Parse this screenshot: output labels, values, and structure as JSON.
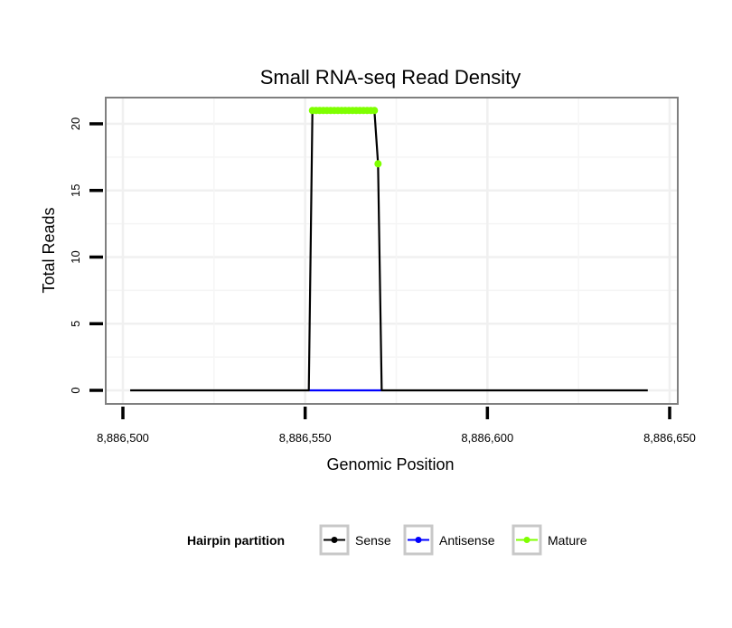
{
  "chart_data": {
    "type": "line",
    "title": "Small RNA-seq Read Density",
    "xlabel": "Genomic Position",
    "ylabel": "Total Reads",
    "xlim": [
      8886500,
      8886650
    ],
    "ylim": [
      -1,
      22
    ],
    "x_ticks": [
      8886500,
      8886550,
      8886600,
      8886650
    ],
    "x_tick_labels": [
      "8,886,500",
      "8,886,550",
      "8,886,600",
      "8,886,650"
    ],
    "y_ticks": [
      0,
      5,
      10,
      15,
      20
    ],
    "y_tick_labels": [
      "0",
      "5",
      "10",
      "15",
      "20"
    ],
    "grid": true,
    "legend": {
      "title": "Hairpin partition",
      "placement": "bottom",
      "entries": [
        "Sense",
        "Antisense",
        "Mature"
      ]
    },
    "series": [
      {
        "name": "Sense",
        "color": "#000000",
        "points": false,
        "x": [
          8886502,
          8886551,
          8886552,
          8886569,
          8886570,
          8886571,
          8886644
        ],
        "y": [
          0,
          0,
          21,
          21,
          17,
          0,
          0
        ]
      },
      {
        "name": "Antisense",
        "color": "#0000ff",
        "points": false,
        "x": [
          8886551,
          8886571
        ],
        "y": [
          0,
          0
        ]
      },
      {
        "name": "Mature",
        "color": "#7fff00",
        "points": true,
        "x": [
          8886552,
          8886553,
          8886554,
          8886555,
          8886556,
          8886557,
          8886558,
          8886559,
          8886560,
          8886561,
          8886562,
          8886563,
          8886564,
          8886565,
          8886566,
          8886567,
          8886568,
          8886569,
          8886570
        ],
        "y": [
          21,
          21,
          21,
          21,
          21,
          21,
          21,
          21,
          21,
          21,
          21,
          21,
          21,
          21,
          21,
          21,
          21,
          21,
          17
        ]
      }
    ]
  }
}
